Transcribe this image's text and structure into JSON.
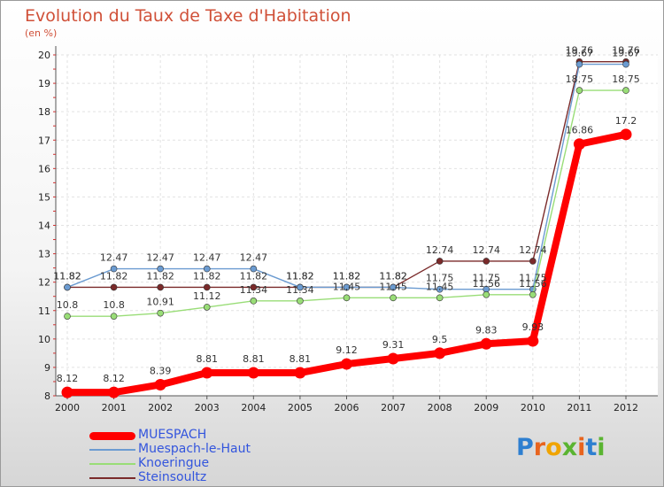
{
  "title": "Evolution du Taux de Taxe d'Habitation",
  "subtitle": "(en %)",
  "logo": {
    "text": "Proxiti",
    "letter_colors": [
      "#2e7fd0",
      "#e8641e",
      "#f0a400",
      "#5ab431",
      "#e8641e",
      "#2e7fd0",
      "#5ab431"
    ]
  },
  "chart_data": {
    "type": "line",
    "x": [
      "2000",
      "2001",
      "2002",
      "2003",
      "2004",
      "2005",
      "2006",
      "2007",
      "2008",
      "2009",
      "2010",
      "2011",
      "2012"
    ],
    "ylim": [
      8,
      20
    ],
    "yticks": [
      "8",
      "9",
      "10",
      "11",
      "12",
      "13",
      "14",
      "15",
      "16",
      "17",
      "18",
      "19",
      "20"
    ],
    "grid": true,
    "legend_position": "bottom-left",
    "series": [
      {
        "name": "MUESPACH",
        "color": "#ff0000",
        "values": [
          8.12,
          8.12,
          8.39,
          8.81,
          8.81,
          8.81,
          9.12,
          9.31,
          9.5,
          9.83,
          9.93,
          16.86,
          17.2
        ],
        "labels": [
          "8.12",
          "8.12",
          "8.39",
          "8.81",
          "8.81",
          "8.81",
          "9.12",
          "9.31",
          "9.5",
          "9.83",
          "9.93",
          "16.86",
          "17.2"
        ]
      },
      {
        "name": "Muespach-le-Haut",
        "color": "#6b9bd1",
        "values": [
          11.82,
          12.47,
          12.47,
          12.47,
          12.47,
          11.82,
          11.82,
          11.82,
          11.75,
          11.75,
          11.75,
          19.67,
          19.67
        ],
        "labels": [
          "11.82",
          "12.47",
          "12.47",
          "12.47",
          "12.47",
          "11.82",
          "11.82",
          "11.82",
          "11.75",
          "11.75",
          "11.75",
          "19.67",
          "19.67"
        ]
      },
      {
        "name": "Knoeringue",
        "color": "#99dd77",
        "values": [
          10.8,
          10.8,
          10.91,
          11.12,
          11.34,
          11.34,
          11.45,
          11.45,
          11.45,
          11.56,
          11.56,
          18.75,
          18.75
        ],
        "labels": [
          "10.8",
          "10.8",
          "10.91",
          "11.12",
          "11.34",
          "11.34",
          "11.45",
          "11.45",
          "11.45",
          "11.56",
          "11.56",
          "18.75",
          "18.75"
        ]
      },
      {
        "name": "Steinsoultz",
        "color": "#7a2a2a",
        "values": [
          11.82,
          11.82,
          11.82,
          11.82,
          11.82,
          11.82,
          11.82,
          11.82,
          12.74,
          12.74,
          12.74,
          19.76,
          19.76
        ],
        "labels": [
          "11.82",
          "11.82",
          "11.82",
          "11.82",
          "11.82",
          "11.82",
          "11.82",
          "11.82",
          "12.74",
          "12.74",
          "12.74",
          "19.76",
          "19.76"
        ]
      }
    ]
  }
}
